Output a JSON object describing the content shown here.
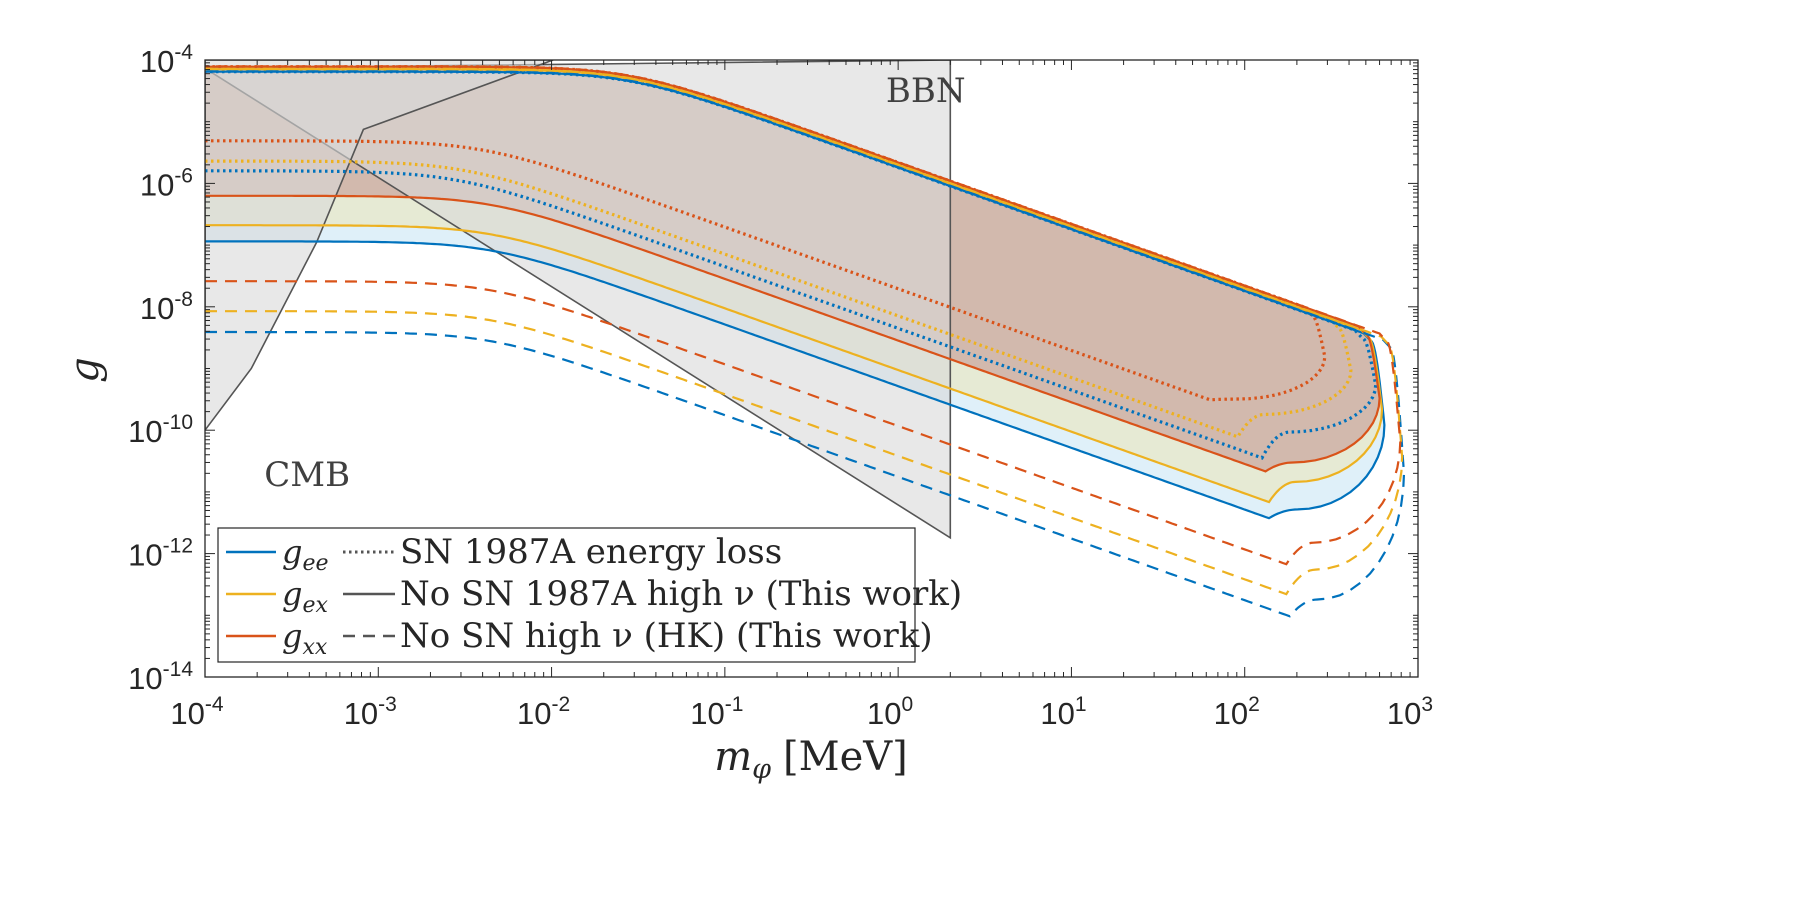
{
  "chart_data": {
    "type": "line",
    "xscale": "log",
    "yscale": "log",
    "xlim": [
      0.0001,
      1000
    ],
    "ylim": [
      1e-14,
      0.0001
    ],
    "xlabel": "m_φ [MeV]",
    "xlabel_parts": {
      "sym": "m",
      "sub": "φ",
      "unit": "[MeV]"
    },
    "ylabel": "g",
    "x_ticks": [
      {
        "exp": -4,
        "base": "10",
        "sup": "-4"
      },
      {
        "exp": -3,
        "base": "10",
        "sup": "-3"
      },
      {
        "exp": -2,
        "base": "10",
        "sup": "-2"
      },
      {
        "exp": -1,
        "base": "10",
        "sup": "-1"
      },
      {
        "exp": 0,
        "base": "10",
        "sup": "0"
      },
      {
        "exp": 1,
        "base": "10",
        "sup": "1"
      },
      {
        "exp": 2,
        "base": "10",
        "sup": "2"
      },
      {
        "exp": 3,
        "base": "10",
        "sup": "3"
      }
    ],
    "y_ticks": [
      {
        "exp": -4,
        "base": "10",
        "sup": "-4"
      },
      {
        "exp": -6,
        "base": "10",
        "sup": "-6"
      },
      {
        "exp": -8,
        "base": "10",
        "sup": "-8"
      },
      {
        "exp": -10,
        "base": "10",
        "sup": "-10"
      },
      {
        "exp": -12,
        "base": "10",
        "sup": "-12"
      },
      {
        "exp": -14,
        "base": "10",
        "sup": "-14"
      }
    ],
    "colors": {
      "gee": "#0072BD",
      "gex": "#EDB120",
      "gxx": "#D95319",
      "bound": "#555555",
      "bound_fill": "#d9d9d9",
      "fill_gee": "#dff0f9",
      "fill_gex": "#e6ead4",
      "fill_gxx": "#d2b9ad"
    },
    "regions": [
      {
        "name": "BBN",
        "label": "BBN",
        "label_at": [
          0.85,
          2.1e-05
        ],
        "boundary": [
          [
            0.0001,
            7.35e-05
          ],
          [
            2,
            1.8e-12
          ],
          [
            2,
            0.0001
          ]
        ]
      },
      {
        "name": "CMB",
        "label": "CMB",
        "label_at": [
          0.00022,
          1.25e-11
        ],
        "boundary": [
          [
            0.0001,
            1e-10
          ],
          [
            0.000185,
            1e-09
          ],
          [
            0.00044,
            1.1e-07
          ],
          [
            0.00082,
            7.5e-06
          ],
          [
            0.0102,
            0.0001
          ],
          [
            0.0001,
            0.0001
          ]
        ]
      }
    ],
    "series": [
      {
        "name": "gee SN 1987A energy loss",
        "coupling": "gee",
        "style": "dotted",
        "plateau_top": 6.46e-05,
        "plateau_bot": 1.6e-06,
        "knee_top": 0.028,
        "knee_bot": 0.0028,
        "tip_x": 570,
        "bottom_y": 9.3e-11
      },
      {
        "name": "gex SN 1987A energy loss",
        "coupling": "gex",
        "style": "dotted",
        "plateau_top": 7.1e-05,
        "plateau_bot": 2.3e-06,
        "knee_top": 0.028,
        "knee_bot": 0.0031,
        "tip_x": 410,
        "bottom_y": 1.8e-10
      },
      {
        "name": "gxx SN 1987A energy loss",
        "coupling": "gxx",
        "style": "dotted",
        "plateau_top": 7.8e-05,
        "plateau_bot": 4.9e-06,
        "knee_top": 0.028,
        "knee_bot": 0.004,
        "tip_x": 290,
        "bottom_y": 3.2e-10
      },
      {
        "name": "gee No SN 1987A high ν",
        "coupling": "gee",
        "style": "solid",
        "plateau_top": 6.46e-05,
        "plateau_bot": 1.15e-07,
        "knee_top": 0.028,
        "knee_bot": 0.0045,
        "tip_x": 640,
        "bottom_y": 5.2e-12
      },
      {
        "name": "gex No SN 1987A high ν",
        "coupling": "gex",
        "style": "solid",
        "plateau_top": 7.1e-05,
        "plateau_bot": 2.1e-07,
        "knee_top": 0.028,
        "knee_bot": 0.0045,
        "tip_x": 620,
        "bottom_y": 1.45e-11
      },
      {
        "name": "gxx No SN 1987A high ν",
        "coupling": "gxx",
        "style": "solid",
        "plateau_top": 7.8e-05,
        "plateau_bot": 6.3e-07,
        "knee_top": 0.028,
        "knee_bot": 0.0045,
        "tip_x": 600,
        "bottom_y": 3e-11
      },
      {
        "name": "gee No SN high ν (HK)",
        "coupling": "gee",
        "style": "dashed",
        "plateau_top": 6.55e-05,
        "plateau_bot": 3.9e-09,
        "knee_top": 0.028,
        "knee_bot": 0.0045,
        "tip_x": 830,
        "bottom_y": 1.8e-13
      },
      {
        "name": "gex No SN high ν (HK)",
        "coupling": "gex",
        "style": "dashed",
        "plateau_top": 7.2e-05,
        "plateau_bot": 8.5e-09,
        "knee_top": 0.028,
        "knee_bot": 0.0045,
        "tip_x": 810,
        "bottom_y": 5.5e-13
      },
      {
        "name": "gxx No SN high ν (HK)",
        "coupling": "gxx",
        "style": "dashed",
        "plateau_top": 7.9e-05,
        "plateau_bot": 2.6e-08,
        "knee_top": 0.028,
        "knee_bot": 0.0045,
        "tip_x": 790,
        "bottom_y": 1.5e-12
      }
    ],
    "legend": {
      "placement": "bottom-left",
      "rows": [
        {
          "sym": "g",
          "sub": "ee",
          "text": "SN 1987A energy loss"
        },
        {
          "sym": "g",
          "sub": "ex",
          "text": "No SN 1987A high ν (This work)"
        },
        {
          "sym": "g",
          "sub": "xx",
          "text": "No SN high ν (HK) (This work)"
        }
      ]
    }
  }
}
